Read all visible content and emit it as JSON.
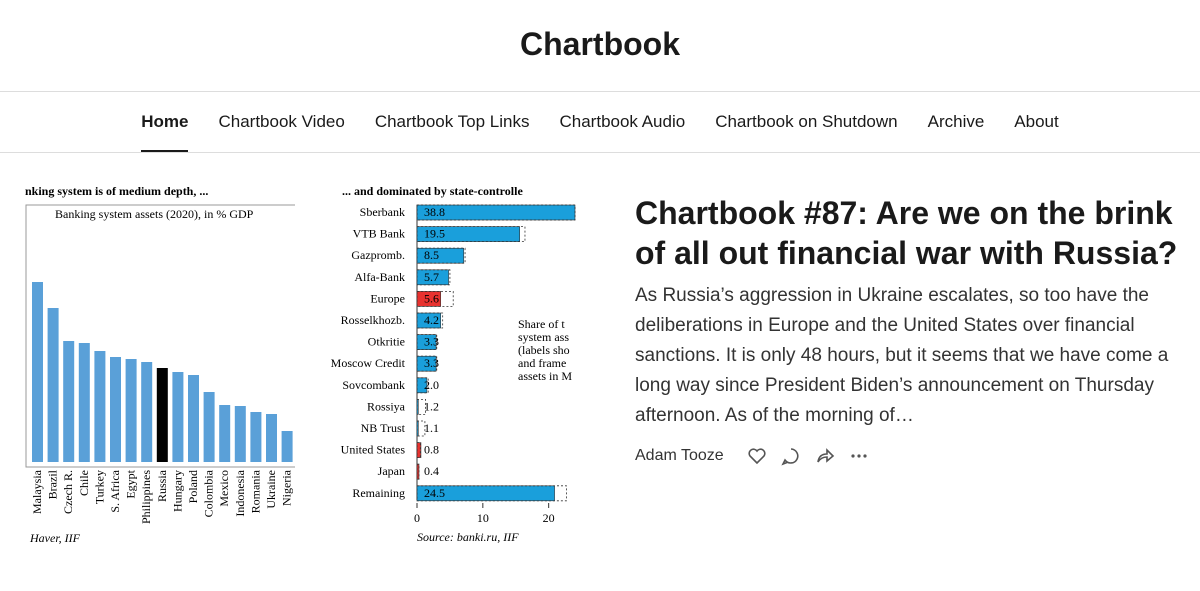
{
  "header": {
    "title": "Chartbook"
  },
  "nav": {
    "items": [
      "Home",
      "Chartbook Video",
      "Chartbook Top Links",
      "Chartbook Audio",
      "Chartbook on Shutdown",
      "Archive",
      "About"
    ],
    "active": 0
  },
  "figure": {
    "left": {
      "type": "bar",
      "title": "nking system is of medium depth, ...",
      "subtitle": "Banking system assets (2020), in % GDP",
      "source": "Haver, IIF",
      "categories": [
        "Malaysia",
        "Brazil",
        "Czech R.",
        "Chile",
        "Turkey",
        "S. Africa",
        "Egypt",
        "Philippines",
        "Russia",
        "Hungary",
        "Poland",
        "Colombia",
        "Mexico",
        "Indonesia",
        "Romania",
        "Ukraine",
        "Nigeria"
      ],
      "values": [
        180,
        154,
        121,
        119,
        111,
        105,
        103,
        100,
        94,
        90,
        87,
        70,
        57,
        56,
        50,
        48,
        31
      ],
      "ylim": [
        0,
        200
      ],
      "color": "#5aa0d8",
      "highlight": {
        "index": 8,
        "color": "#000000"
      }
    },
    "right": {
      "type": "barh",
      "title": "... and dominated by state-controlle",
      "source": "Source: banki.ru, IIF",
      "categories": [
        "Sberbank",
        "VTB Bank",
        "Gazpromb.",
        "Alfa-Bank",
        "Europe",
        "Rosselkhozb.",
        "Otkritie",
        "Moscow Credit",
        "Sovcombank",
        "Rossiya",
        "NB Trust",
        "United States",
        "Japan",
        "Remaining"
      ],
      "values": [
        24,
        15.6,
        7.1,
        4.8,
        3.6,
        3.6,
        2.9,
        2.9,
        1.5,
        0.2,
        0.2,
        0.6,
        0.3,
        20.9
      ],
      "frames": [
        24,
        16.4,
        7.3,
        5,
        5.5,
        3.9,
        3,
        3,
        1.7,
        1.3,
        1.2,
        0.5,
        0.3,
        22.7
      ],
      "shares": [
        38.8,
        19.5,
        8.5,
        5.7,
        5.6,
        4.2,
        3.3,
        3.3,
        2,
        1.2,
        1.1,
        0.8,
        0.4,
        24.5
      ],
      "share_labels": [
        "38.8",
        "19.5",
        "8.5",
        "5.7",
        "5.6",
        "4.2",
        "3.3",
        "3.3",
        "2.0",
        "1.2",
        "1.1",
        "0.8",
        "0.4",
        "24.5"
      ],
      "colors": [
        "#1a9fdb",
        "#1a9fdb",
        "#1a9fdb",
        "#1a9fdb",
        "#e8322f",
        "#1a9fdb",
        "#1a9fdb",
        "#1a9fdb",
        "#1a9fdb",
        "#1a9fdb",
        "#1a9fdb",
        "#e8322f",
        "#e8322f",
        "#1a9fdb"
      ],
      "xlim": [
        0,
        24
      ],
      "xticks": [
        0,
        10,
        20
      ],
      "annotation": [
        "Share of t",
        "system ass",
        "(labels sho",
        "and frame",
        "assets in M"
      ]
    }
  },
  "post": {
    "title": "Chartbook #87: Are we on the brink of all out financial war with Russia?",
    "excerpt": "As Russia’s aggression in Ukraine escalates, so too have the deliberations in Europe and the United States over financial sanctions. It is only 48 hours, but it seems that we have come a long way since President Biden’s announcement on Thursday afternoon. As of the morning of…",
    "author": "Adam Tooze"
  }
}
